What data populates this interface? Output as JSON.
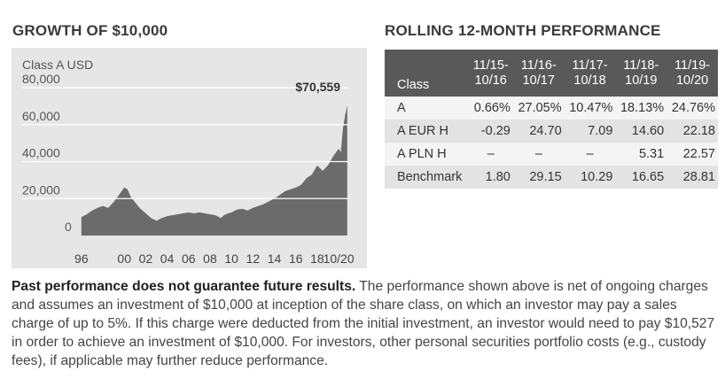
{
  "growth_heading": "GROWTH OF $10,000",
  "rolling_heading": "ROLLING 12-MONTH PERFORMANCE",
  "chart_data": {
    "type": "area",
    "title": "GROWTH OF $10,000",
    "series_label": "Class A USD",
    "end_value_label": "$70,559",
    "ylim": [
      0,
      80000
    ],
    "y_ticks": [
      0,
      20000,
      40000,
      60000,
      80000
    ],
    "y_tick_labels": [
      "0",
      "20,000",
      "40,000",
      "60,000",
      "80,000"
    ],
    "xlim": [
      1995.6,
      2020.9
    ],
    "x_ticks": [
      1996,
      2000,
      2002,
      2004,
      2006,
      2008,
      2010,
      2012,
      2014,
      2016,
      2018,
      2020
    ],
    "x_tick_labels": [
      "96",
      "00",
      "02",
      "04",
      "06",
      "08",
      "10",
      "12",
      "14",
      "16",
      "18",
      "10/20"
    ],
    "x": [
      1996.0,
      1996.5,
      1997.0,
      1997.5,
      1998.0,
      1998.5,
      1999.0,
      1999.5,
      2000.0,
      2000.3,
      2000.6,
      2001.0,
      2001.5,
      2002.0,
      2002.5,
      2003.0,
      2003.5,
      2004.0,
      2004.5,
      2005.0,
      2005.5,
      2006.0,
      2006.5,
      2007.0,
      2007.5,
      2008.0,
      2008.5,
      2009.0,
      2009.3,
      2009.7,
      2010.0,
      2010.5,
      2011.0,
      2011.5,
      2012.0,
      2012.5,
      2013.0,
      2013.5,
      2014.0,
      2014.5,
      2015.0,
      2015.5,
      2016.0,
      2016.5,
      2017.0,
      2017.5,
      2018.0,
      2018.5,
      2019.0,
      2019.5,
      2020.0,
      2020.2,
      2020.4,
      2020.6,
      2020.8
    ],
    "values": [
      10000,
      11500,
      13500,
      15000,
      16000,
      15000,
      18000,
      22000,
      26000,
      25000,
      21000,
      18000,
      14500,
      12000,
      9500,
      8000,
      9500,
      10500,
      11000,
      11500,
      12000,
      12500,
      12000,
      12500,
      12000,
      11500,
      11000,
      9500,
      11000,
      12000,
      12500,
      14000,
      14500,
      13500,
      15000,
      16000,
      17000,
      18500,
      20000,
      22000,
      24000,
      25000,
      26000,
      27500,
      31000,
      33000,
      38000,
      35000,
      38000,
      43000,
      47000,
      45000,
      58000,
      65000,
      70559
    ]
  },
  "table": {
    "class_header": "Class",
    "periods": [
      {
        "line1": "11/15-",
        "line2": "10/16"
      },
      {
        "line1": "11/16-",
        "line2": "10/17"
      },
      {
        "line1": "11/17-",
        "line2": "10/18"
      },
      {
        "line1": "11/18-",
        "line2": "10/19"
      },
      {
        "line1": "11/19-",
        "line2": "10/20"
      }
    ],
    "rows": [
      {
        "class": "A",
        "values": [
          "0.66%",
          "27.05%",
          "10.47%",
          "18.13%",
          "24.76%"
        ]
      },
      {
        "class": "A EUR H",
        "values": [
          "-0.29",
          "24.70",
          "7.09",
          "14.60",
          "22.18"
        ]
      },
      {
        "class": "A PLN H",
        "values": [
          "–",
          "–",
          "–",
          "5.31",
          "22.57"
        ]
      },
      {
        "class": "Benchmark",
        "values": [
          "1.80",
          "29.15",
          "10.29",
          "16.65",
          "28.81"
        ]
      }
    ]
  },
  "disclaimer": {
    "bold": "Past performance does not guarantee future results.",
    "text": " The performance shown above is net of ongoing charges and assumes an investment of $10,000 at inception of the share class, on which an investor may pay a sales charge of up to 5%. If this charge were deducted from the initial investment, an investor would need to pay $10,527 in order to achieve an investment of $10,000. For investors, other personal securities portfolio costs (e.g., custody fees), if applicable may further reduce performance."
  },
  "colors": {
    "panel_bg": "#e6e6e6",
    "area_fill": "#6b6b6b",
    "gridline": "#ffffff",
    "table_header_bg": "#595959"
  }
}
